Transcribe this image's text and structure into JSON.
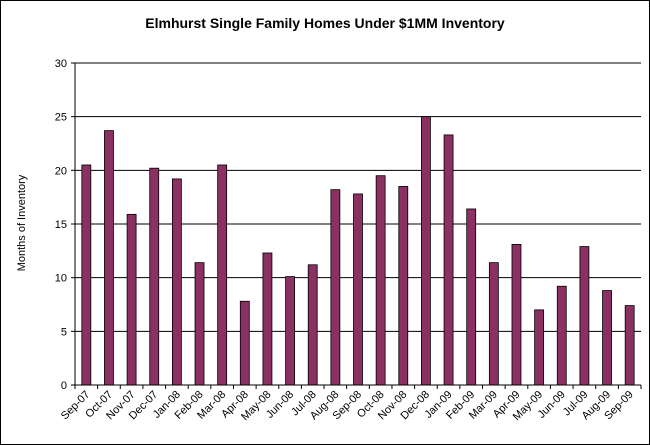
{
  "chart_data": {
    "type": "bar",
    "title": "Elmhurst Single Family Homes Under $1MM Inventory",
    "xlabel": "",
    "ylabel": "Months of Inventory",
    "ylim": [
      0,
      30
    ],
    "yticks": [
      0,
      5,
      10,
      15,
      20,
      25,
      30
    ],
    "grid": true,
    "legend": "none",
    "bar_color": "#8B3062",
    "categories": [
      "Sep-07",
      "Oct-07",
      "Nov-07",
      "Dec-07",
      "Jan-08",
      "Feb-08",
      "Mar-08",
      "Apr-08",
      "May-08",
      "Jun-08",
      "Jul-08",
      "Aug-08",
      "Sep-08",
      "Oct-08",
      "Nov-08",
      "Dec-08",
      "Jan-09",
      "Feb-09",
      "Mar-09",
      "Apr-09",
      "May-09",
      "Jun-09",
      "Jul-09",
      "Aug-09",
      "Sep-09"
    ],
    "values": [
      20.5,
      23.7,
      15.9,
      20.2,
      19.2,
      11.4,
      20.5,
      7.8,
      12.3,
      10.1,
      11.2,
      18.2,
      17.8,
      19.5,
      18.5,
      25.0,
      23.3,
      16.4,
      11.4,
      13.1,
      7.0,
      9.2,
      12.9,
      8.8,
      7.4
    ]
  }
}
